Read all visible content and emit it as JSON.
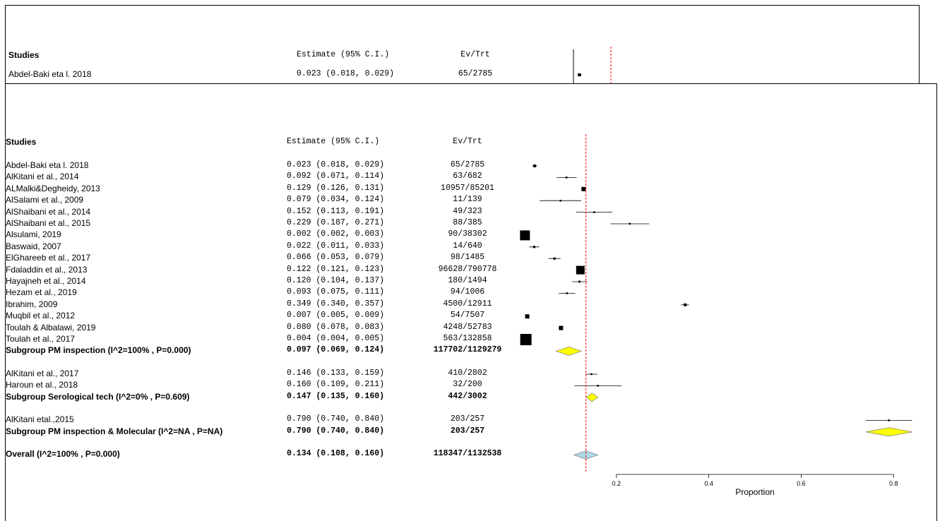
{
  "chart_data": {
    "type": "forest",
    "headers": {
      "studies": "Studies",
      "estimate": "Estimate (95% C.I.)",
      "evtrt": "Ev/Trt"
    },
    "behind_panel": {
      "rows": [
        {
          "study": "Abdel-Baki eta l. 2018",
          "estimate_text": "0.023 (0.018, 0.029)",
          "evtrt": "65/2785",
          "est": 0.023
        }
      ]
    },
    "rows": [
      {
        "kind": "study",
        "study": "Abdel-Baki eta l. 2018",
        "estimate_text": "0.023 (0.018, 0.029)",
        "evtrt": "65/2785",
        "est": 0.023,
        "lo": 0.018,
        "hi": 0.029,
        "weight": 1.0
      },
      {
        "kind": "study",
        "study": "AlKitani et al., 2014",
        "estimate_text": "0.092 (0.071, 0.114)",
        "evtrt": "63/682",
        "est": 0.092,
        "lo": 0.071,
        "hi": 0.114,
        "weight": 0.5
      },
      {
        "kind": "study",
        "study": "ALMalki&Degheidy, 2013",
        "estimate_text": "0.129 (0.126, 0.131)",
        "evtrt": "10957/85201",
        "est": 0.129,
        "lo": 0.126,
        "hi": 0.131,
        "weight": 1.5
      },
      {
        "kind": "study",
        "study": "AlSalami et al., 2009",
        "estimate_text": "0.079 (0.034, 0.124)",
        "evtrt": "11/139",
        "est": 0.079,
        "lo": 0.034,
        "hi": 0.124,
        "weight": 0.3
      },
      {
        "kind": "study",
        "study": "AlShaibani et al., 2014",
        "estimate_text": "0.152 (0.113, 0.191)",
        "evtrt": "49/323",
        "est": 0.152,
        "lo": 0.113,
        "hi": 0.191,
        "weight": 0.3
      },
      {
        "kind": "study",
        "study": "AlShaibani et al., 2015",
        "estimate_text": "0.229 (0.187, 0.271)",
        "evtrt": "88/385",
        "est": 0.229,
        "lo": 0.187,
        "hi": 0.271,
        "weight": 0.3
      },
      {
        "kind": "study",
        "study": "Alsulami, 2019",
        "estimate_text": "0.002 (0.002, 0.003)",
        "evtrt": "90/38302",
        "est": 0.002,
        "lo": 0.002,
        "hi": 0.003,
        "weight": 3.5
      },
      {
        "kind": "study",
        "study": "Baswaid, 2007",
        "estimate_text": "0.022 (0.011, 0.033)",
        "evtrt": "14/640",
        "est": 0.022,
        "lo": 0.011,
        "hi": 0.033,
        "weight": 0.8
      },
      {
        "kind": "study",
        "study": "ElGhareeb et al., 2017",
        "estimate_text": "0.066 (0.053, 0.079)",
        "evtrt": "98/1485",
        "est": 0.066,
        "lo": 0.053,
        "hi": 0.079,
        "weight": 0.8
      },
      {
        "kind": "study",
        "study": "Fdaladdin et al., 2013",
        "estimate_text": "0.122 (0.121, 0.123)",
        "evtrt": "96628/790778",
        "est": 0.122,
        "lo": 0.121,
        "hi": 0.123,
        "weight": 3.0
      },
      {
        "kind": "study",
        "study": "Hayajneh et al., 2014",
        "estimate_text": "0.120 (0.104, 0.137)",
        "evtrt": "180/1494",
        "est": 0.12,
        "lo": 0.104,
        "hi": 0.137,
        "weight": 0.7
      },
      {
        "kind": "study",
        "study": "Hezam et al., 2019",
        "estimate_text": "0.093 (0.075, 0.111)",
        "evtrt": "94/1006",
        "est": 0.093,
        "lo": 0.075,
        "hi": 0.111,
        "weight": 0.6
      },
      {
        "kind": "study",
        "study": "Ibrahim, 2009",
        "estimate_text": "0.349 (0.340, 0.357)",
        "evtrt": "4500/12911",
        "est": 0.349,
        "lo": 0.34,
        "hi": 0.357,
        "weight": 1.0
      },
      {
        "kind": "study",
        "study": "Muqbil et al., 2012",
        "estimate_text": "0.007 (0.005, 0.009)",
        "evtrt": "54/7507",
        "est": 0.007,
        "lo": 0.005,
        "hi": 0.009,
        "weight": 1.5
      },
      {
        "kind": "study",
        "study": "Toulah & Albalawi, 2019",
        "estimate_text": "0.080 (0.078, 0.083)",
        "evtrt": "4248/52783",
        "est": 0.08,
        "lo": 0.078,
        "hi": 0.083,
        "weight": 1.5
      },
      {
        "kind": "study",
        "study": "Toulah et al., 2017",
        "estimate_text": "0.004 (0.004, 0.005)",
        "evtrt": "563/132858",
        "est": 0.004,
        "lo": 0.004,
        "hi": 0.005,
        "weight": 4.0
      },
      {
        "kind": "subgroup",
        "study": "Subgroup PM inspection (I^2=100% , P=0.000)",
        "estimate_text": "0.097 (0.069, 0.124)",
        "evtrt": "117702/1129279",
        "est": 0.097,
        "lo": 0.069,
        "hi": 0.124
      },
      {
        "kind": "gap"
      },
      {
        "kind": "study",
        "study": "AlKitani et al., 2017",
        "estimate_text": "0.146 (0.133, 0.159)",
        "evtrt": "410/2802",
        "est": 0.146,
        "lo": 0.133,
        "hi": 0.159,
        "weight": 0.6
      },
      {
        "kind": "study",
        "study": "Haroun et al., 2018",
        "estimate_text": "0.160 (0.109, 0.211)",
        "evtrt": "32/200",
        "est": 0.16,
        "lo": 0.109,
        "hi": 0.211,
        "weight": 0.3
      },
      {
        "kind": "subgroup",
        "study": "Subgroup Serological tech (I^2=0% , P=0.609)",
        "estimate_text": "0.147 (0.135, 0.160)",
        "evtrt": "442/3002",
        "est": 0.147,
        "lo": 0.135,
        "hi": 0.16
      },
      {
        "kind": "gap"
      },
      {
        "kind": "study",
        "study": "AlKitani etal.,2015",
        "estimate_text": "0.790 (0.740, 0.840)",
        "evtrt": "203/257",
        "est": 0.79,
        "lo": 0.74,
        "hi": 0.84,
        "weight": 0.3
      },
      {
        "kind": "subgroup",
        "study": "Subgroup PM inspection & Molecular (I^2=NA , P=NA)",
        "estimate_text": "0.790 (0.740, 0.840)",
        "evtrt": "203/257",
        "est": 0.79,
        "lo": 0.74,
        "hi": 0.84
      },
      {
        "kind": "gap"
      },
      {
        "kind": "overall",
        "study": "Overall (I^2=100% , P=0.000)",
        "estimate_text": "0.134 (0.108, 0.160)",
        "evtrt": "118347/1132538",
        "est": 0.134,
        "lo": 0.108,
        "hi": 0.16
      }
    ],
    "reference_line": 0.134,
    "x_ticks": [
      0.2,
      0.4,
      0.6,
      0.8
    ],
    "xlabel": "Proportion",
    "colors": {
      "subgroup_diamond": "#ffff00",
      "overall_diamond": "#add8e6",
      "reference_line": "#ff0000",
      "marker": "#000000"
    }
  }
}
